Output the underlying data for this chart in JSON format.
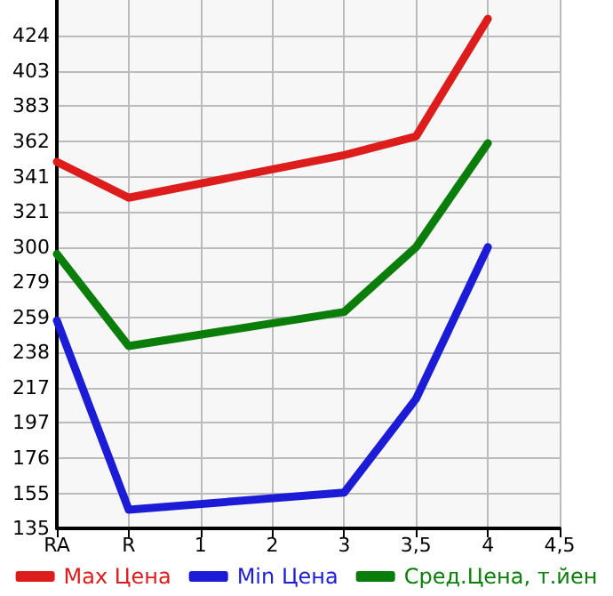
{
  "chart_data": {
    "type": "line",
    "categories": [
      "RA",
      "R",
      "1",
      "2",
      "3",
      "3,5",
      "4",
      "4,5"
    ],
    "series": [
      {
        "name": "Max Цена",
        "color": "#dd1c1c",
        "values": [
          350,
          329,
          null,
          null,
          354,
          365,
          434,
          null
        ]
      },
      {
        "name": "Min Цена",
        "color": "#1c1cd6",
        "values": [
          257,
          146,
          null,
          null,
          156,
          211,
          300,
          null
        ]
      },
      {
        "name": "Сред.Цена, т.йен",
        "color": "#0a7d0a",
        "values": [
          296,
          242,
          null,
          null,
          262,
          300,
          361,
          null
        ]
      }
    ],
    "ylim": [
      135,
      445
    ],
    "yticks": [
      135,
      {
        "value": 155.4,
        "label": "155"
      },
      {
        "value": 176.3,
        "label": "176"
      },
      {
        "value": 196.9,
        "label": "197"
      },
      {
        "value": 217.4,
        "label": "217"
      },
      {
        "value": 238.2,
        "label": "238"
      },
      {
        "value": 258.9,
        "label": "259"
      },
      {
        "value": 279.5,
        "label": "279"
      },
      {
        "value": 300.1,
        "label": "300"
      },
      {
        "value": 320.8,
        "label": "321"
      },
      {
        "value": 341.4,
        "label": "341"
      },
      {
        "value": 362.1,
        "label": "362"
      },
      {
        "value": 382.7,
        "label": "383"
      },
      {
        "value": 403.4,
        "label": "403"
      },
      424
    ],
    "grid": true,
    "legend": "bottom",
    "marker": "none",
    "line_style": "solid"
  }
}
